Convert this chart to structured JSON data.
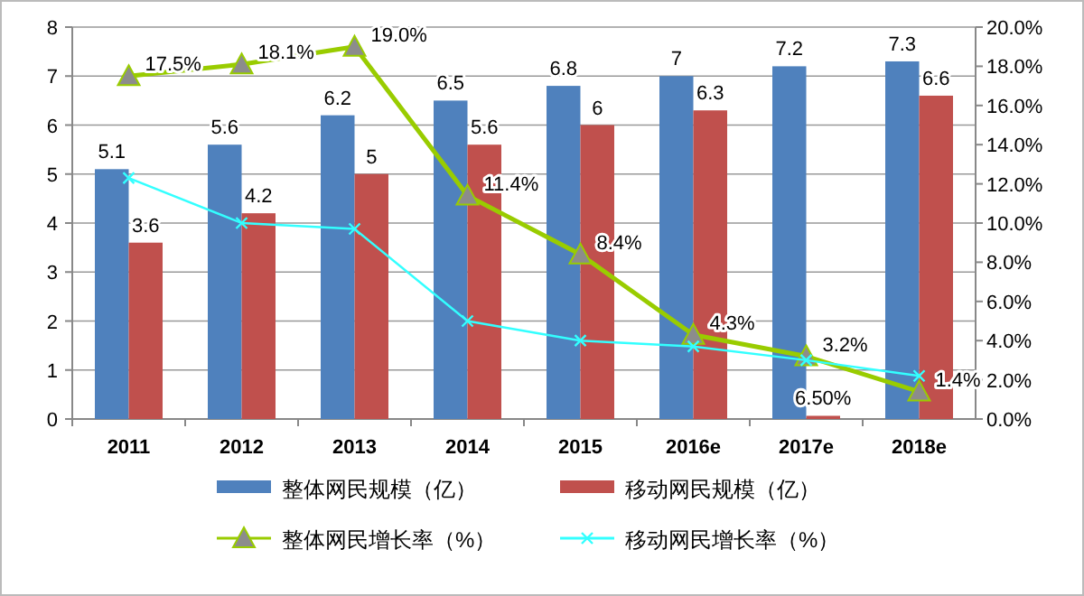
{
  "chart_data": {
    "type": "bar",
    "categories": [
      "2011",
      "2012",
      "2013",
      "2014",
      "2015",
      "2016e",
      "2017e",
      "2018e"
    ],
    "series": [
      {
        "name": "整体网民规模（亿）",
        "color": "#4f81bd",
        "values": [
          5.1,
          5.6,
          6.2,
          6.5,
          6.8,
          7,
          7.2,
          7.3
        ],
        "value_labels": [
          "5.1",
          "5.6",
          "6.2",
          "6.5",
          "6.8",
          "7",
          "7.2",
          "7.3"
        ]
      },
      {
        "name": "移动网民规模（亿）",
        "color": "#c0504d",
        "values": [
          3.6,
          4.2,
          5,
          5.6,
          6,
          6.3,
          0.065,
          6.6
        ],
        "value_labels": [
          "3.6",
          "4.2",
          "5",
          "5.6",
          "6",
          "6.3",
          "6.50%",
          "6.6"
        ]
      },
      {
        "name": "整体网民增长率（%）",
        "type": "line",
        "axis": "y2",
        "color": "#99cc00",
        "marker": "triangle",
        "values": [
          17.5,
          18.1,
          19.0,
          11.4,
          8.4,
          4.3,
          3.2,
          1.4
        ],
        "value_labels": [
          "17.5%",
          "18.1%",
          "19.0%",
          "11.4%",
          "8.4%",
          "4.3%",
          "3.2%",
          "1.4%"
        ]
      },
      {
        "name": "移动网民增长率（%）",
        "type": "line",
        "axis": "y2",
        "color": "#33ffff",
        "marker": "cross",
        "values": [
          12.3,
          10.0,
          9.7,
          5.0,
          4.0,
          3.7,
          3.0,
          2.2
        ]
      }
    ],
    "ylim": [
      0,
      8
    ],
    "yticks": [
      0,
      1,
      2,
      3,
      4,
      5,
      6,
      7,
      8
    ],
    "y2lim": [
      0,
      20
    ],
    "y2ticks": [
      {
        "value": 0,
        "label": "0.0%"
      },
      {
        "value": 2,
        "label": "2.0%"
      },
      {
        "value": 4,
        "label": "4.0%"
      },
      {
        "value": 6,
        "label": "6.0%"
      },
      {
        "value": 8,
        "label": "8.0%"
      },
      {
        "value": 10,
        "label": "10.0%"
      },
      {
        "value": 12,
        "label": "12.0%"
      },
      {
        "value": 14,
        "label": "14.0%"
      },
      {
        "value": 16,
        "label": "16.0%"
      },
      {
        "value": 18,
        "label": "18.0%"
      },
      {
        "value": 20,
        "label": "20.0%"
      }
    ],
    "grid": "y",
    "legend": "bottom"
  }
}
